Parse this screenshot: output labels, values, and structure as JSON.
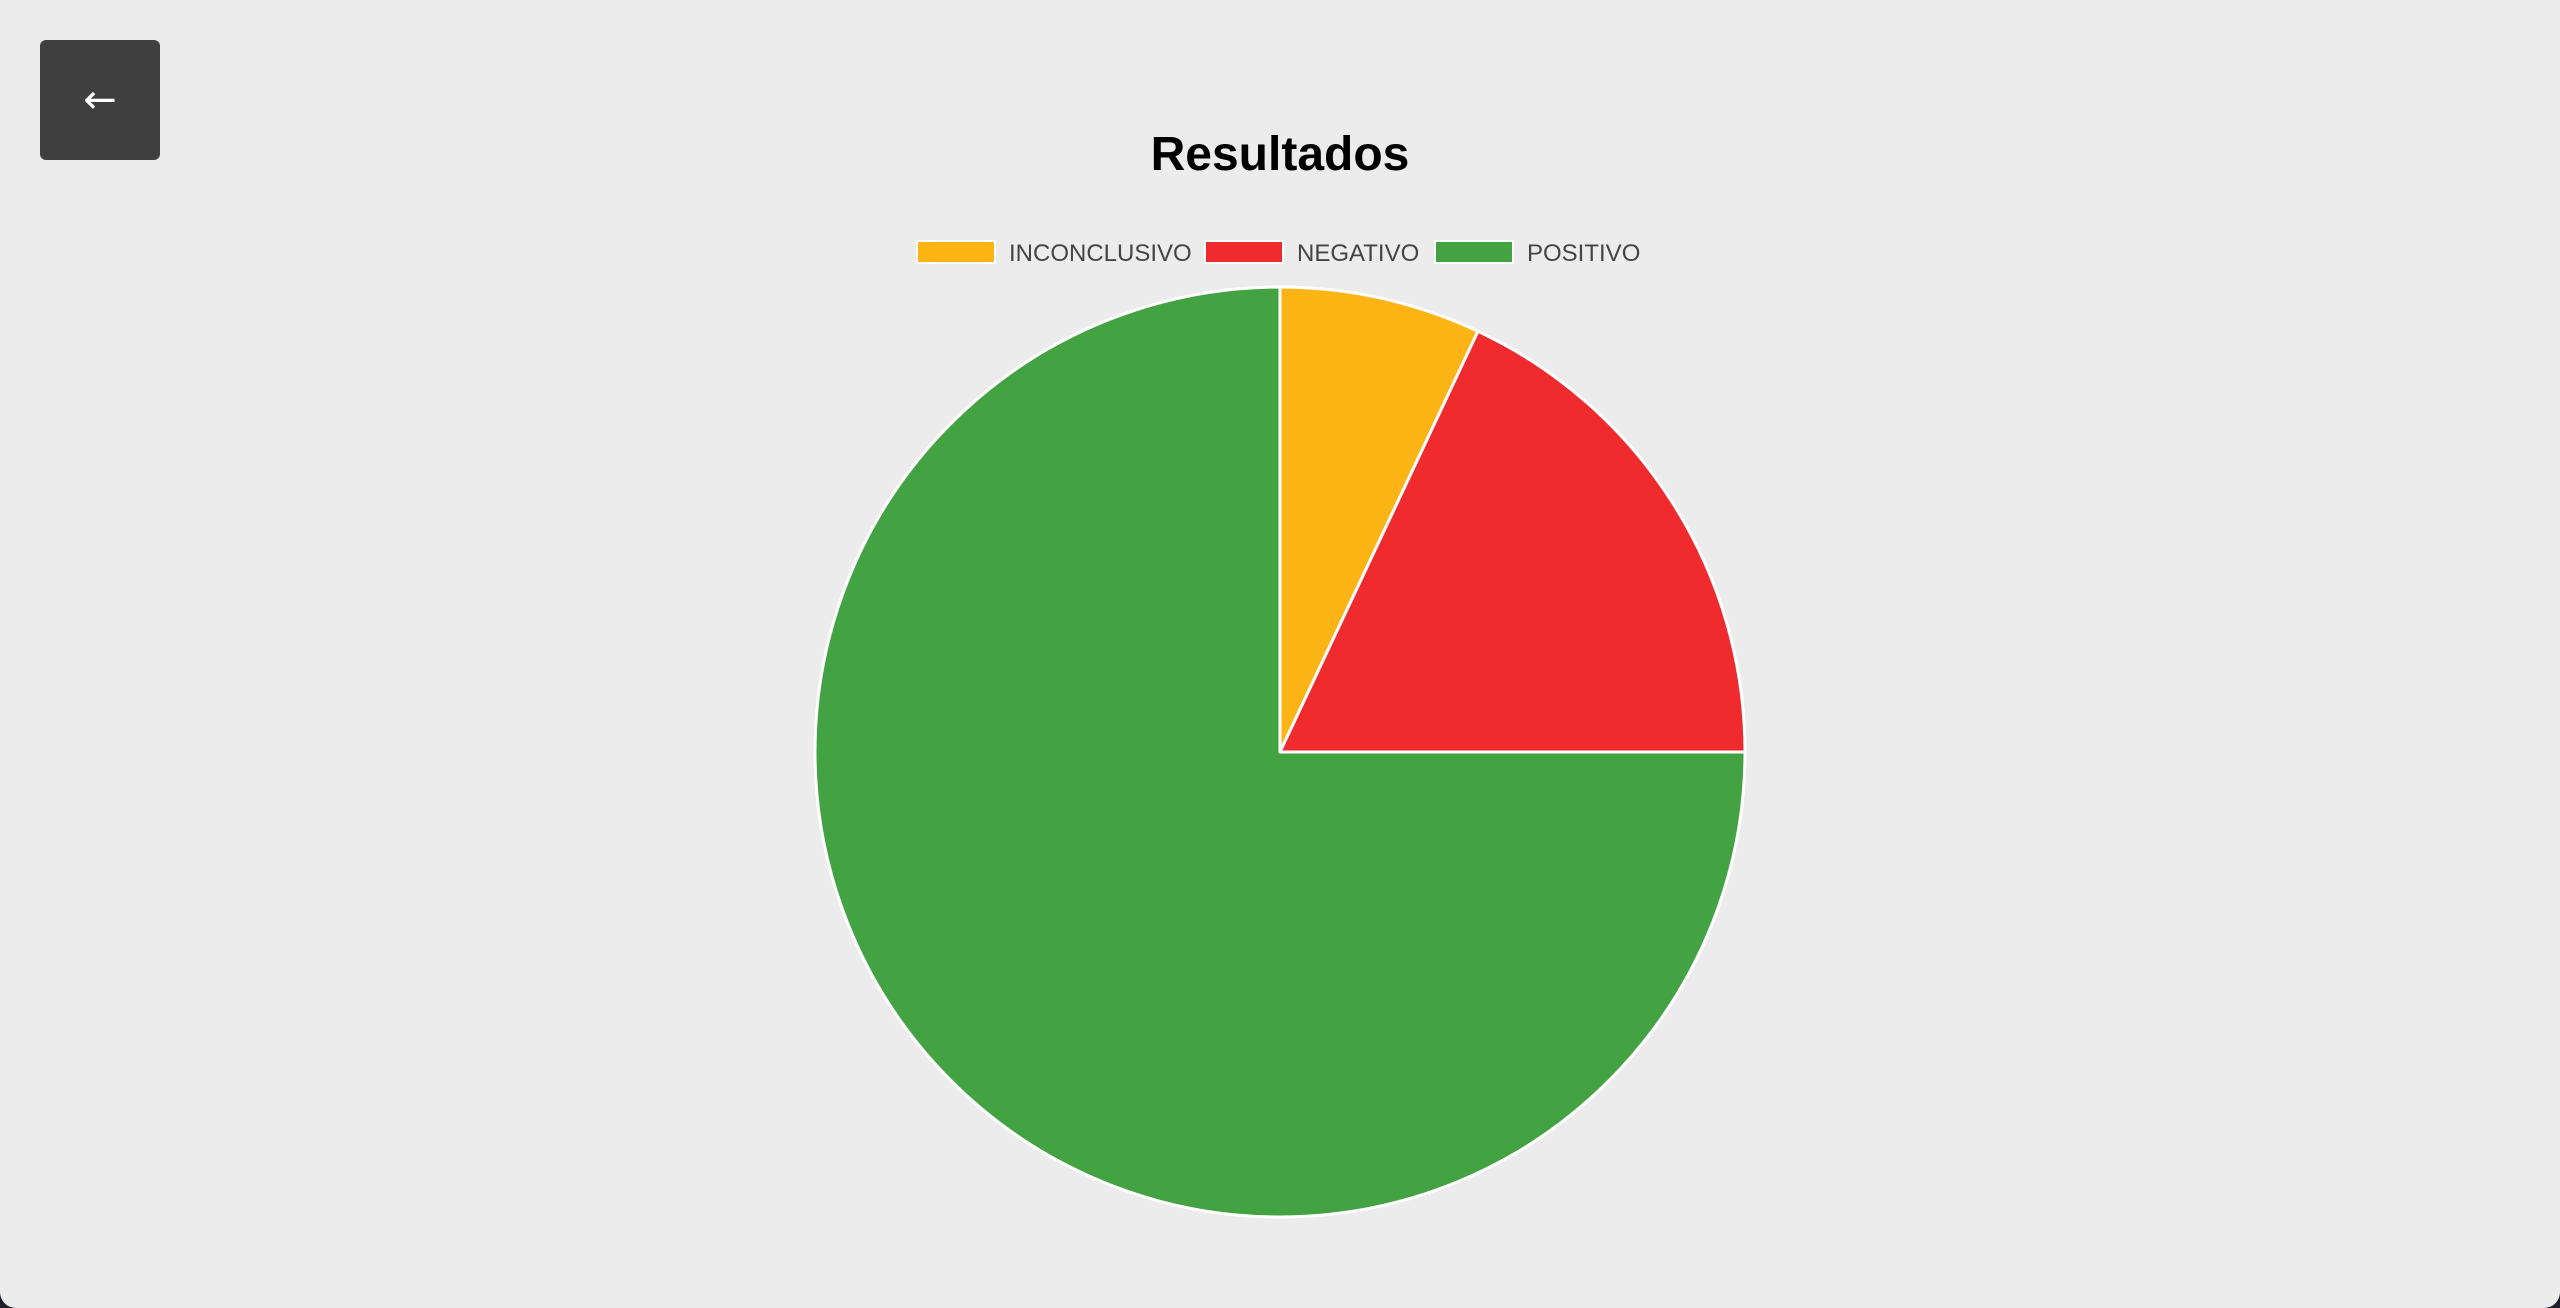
{
  "back_button": {
    "label": "←",
    "icon": "arrow-left-icon"
  },
  "colors": {
    "background": "#ececec",
    "back_button_bg": "#3f3f3f",
    "slice_border": "#ffffff"
  },
  "chart_data": {
    "type": "pie",
    "title": "Resultados",
    "legend_position": "top",
    "categories": [
      "INCONCLUSIVO",
      "NEGATIVO",
      "POSITIVO"
    ],
    "values": [
      7,
      18,
      75
    ],
    "colors": [
      "#fdb515",
      "#ef2b2d",
      "#43a342"
    ]
  }
}
